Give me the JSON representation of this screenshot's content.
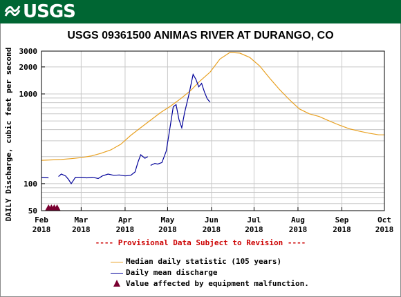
{
  "header": {
    "logo_text": "USGS",
    "bg_color": "#006633"
  },
  "chart_data": {
    "type": "line",
    "title": "USGS 09361500 ANIMAS RIVER AT DURANGO, CO",
    "ylabel": "DAILY Discharge, cubic feet per second",
    "yscale": "log",
    "ylim": [
      50,
      3000
    ],
    "xlim": [
      "2018-02-01",
      "2018-10-01"
    ],
    "grid": true,
    "y_ticks": [
      {
        "value": 50,
        "label": "50"
      },
      {
        "value": 100,
        "label": "100"
      },
      {
        "value": 1000,
        "label": "1000"
      },
      {
        "value": 2000,
        "label": "2000"
      },
      {
        "value": 3000,
        "label": "3000"
      }
    ],
    "x_ticks": [
      {
        "date": "2018-02-01",
        "month": "Feb",
        "year": "2018"
      },
      {
        "date": "2018-03-01",
        "month": "Mar",
        "year": "2018"
      },
      {
        "date": "2018-04-01",
        "month": "Apr",
        "year": "2018"
      },
      {
        "date": "2018-05-01",
        "month": "May",
        "year": "2018"
      },
      {
        "date": "2018-06-01",
        "month": "Jun",
        "year": "2018"
      },
      {
        "date": "2018-07-01",
        "month": "Jul",
        "year": "2018"
      },
      {
        "date": "2018-08-01",
        "month": "Aug",
        "year": "2018"
      },
      {
        "date": "2018-09-01",
        "month": "Sep",
        "year": "2018"
      },
      {
        "date": "2018-10-01",
        "month": "Oct",
        "year": "2018"
      }
    ],
    "series": [
      {
        "name": "Median daily statistic (105 years)",
        "color": "#e8a020",
        "points": [
          [
            "2018-02-01",
            182
          ],
          [
            "2018-02-08",
            184
          ],
          [
            "2018-02-15",
            186
          ],
          [
            "2018-02-22",
            190
          ],
          [
            "2018-03-01",
            195
          ],
          [
            "2018-03-08",
            203
          ],
          [
            "2018-03-15",
            218
          ],
          [
            "2018-03-22",
            238
          ],
          [
            "2018-03-29",
            275
          ],
          [
            "2018-04-05",
            345
          ],
          [
            "2018-04-12",
            420
          ],
          [
            "2018-04-19",
            510
          ],
          [
            "2018-04-26",
            620
          ],
          [
            "2018-05-03",
            730
          ],
          [
            "2018-05-10",
            880
          ],
          [
            "2018-05-17",
            1080
          ],
          [
            "2018-05-24",
            1400
          ],
          [
            "2018-05-31",
            1750
          ],
          [
            "2018-06-07",
            2450
          ],
          [
            "2018-06-14",
            2900
          ],
          [
            "2018-06-21",
            2850
          ],
          [
            "2018-06-28",
            2550
          ],
          [
            "2018-07-05",
            2050
          ],
          [
            "2018-07-12",
            1500
          ],
          [
            "2018-07-19",
            1120
          ],
          [
            "2018-07-26",
            860
          ],
          [
            "2018-08-02",
            680
          ],
          [
            "2018-08-09",
            600
          ],
          [
            "2018-08-16",
            560
          ],
          [
            "2018-08-23",
            500
          ],
          [
            "2018-08-30",
            450
          ],
          [
            "2018-09-06",
            410
          ],
          [
            "2018-09-13",
            385
          ],
          [
            "2018-09-20",
            365
          ],
          [
            "2018-09-27",
            350
          ],
          [
            "2018-10-01",
            350
          ]
        ]
      },
      {
        "name": "Daily mean discharge",
        "color": "#000099",
        "segments": [
          [
            [
              "2018-02-01",
              118
            ],
            [
              "2018-02-03",
              117
            ],
            [
              "2018-02-06",
              116
            ]
          ],
          [
            [
              "2018-02-13",
              120
            ],
            [
              "2018-02-15",
              128
            ],
            [
              "2018-02-18",
              122
            ],
            [
              "2018-02-20",
              112
            ],
            [
              "2018-02-22",
              100
            ],
            [
              "2018-02-25",
              118
            ],
            [
              "2018-03-01",
              118
            ],
            [
              "2018-03-05",
              116
            ],
            [
              "2018-03-09",
              118
            ],
            [
              "2018-03-13",
              114
            ],
            [
              "2018-03-16",
              122
            ],
            [
              "2018-03-20",
              128
            ],
            [
              "2018-03-24",
              124
            ],
            [
              "2018-03-28",
              125
            ],
            [
              "2018-04-01",
              122
            ],
            [
              "2018-04-05",
              124
            ],
            [
              "2018-04-08",
              135
            ],
            [
              "2018-04-10",
              172
            ],
            [
              "2018-04-12",
              210
            ],
            [
              "2018-04-15",
              192
            ],
            [
              "2018-04-17",
              200
            ]
          ],
          [
            [
              "2018-04-19",
              160
            ],
            [
              "2018-04-22",
              168
            ],
            [
              "2018-04-24",
              165
            ],
            [
              "2018-04-27",
              172
            ],
            [
              "2018-04-30",
              230
            ],
            [
              "2018-05-02",
              360
            ],
            [
              "2018-05-05",
              720
            ],
            [
              "2018-05-07",
              760
            ],
            [
              "2018-05-09",
              520
            ],
            [
              "2018-05-11",
              420
            ],
            [
              "2018-05-13",
              620
            ],
            [
              "2018-05-16",
              980
            ],
            [
              "2018-05-19",
              1650
            ],
            [
              "2018-05-21",
              1450
            ],
            [
              "2018-05-23",
              1200
            ],
            [
              "2018-05-25",
              1310
            ],
            [
              "2018-05-27",
              1050
            ],
            [
              "2018-05-29",
              880
            ],
            [
              "2018-05-31",
              810
            ]
          ]
        ]
      },
      {
        "name": "Value affected by equipment malfunction.",
        "color": "#7a0030",
        "marker": "triangle",
        "points": [
          [
            "2018-02-06",
            51
          ],
          [
            "2018-02-08",
            51
          ],
          [
            "2018-02-10",
            51
          ],
          [
            "2018-02-12",
            51
          ]
        ]
      }
    ],
    "provisional_note": "---- Provisional Data Subject to Revision ----"
  }
}
